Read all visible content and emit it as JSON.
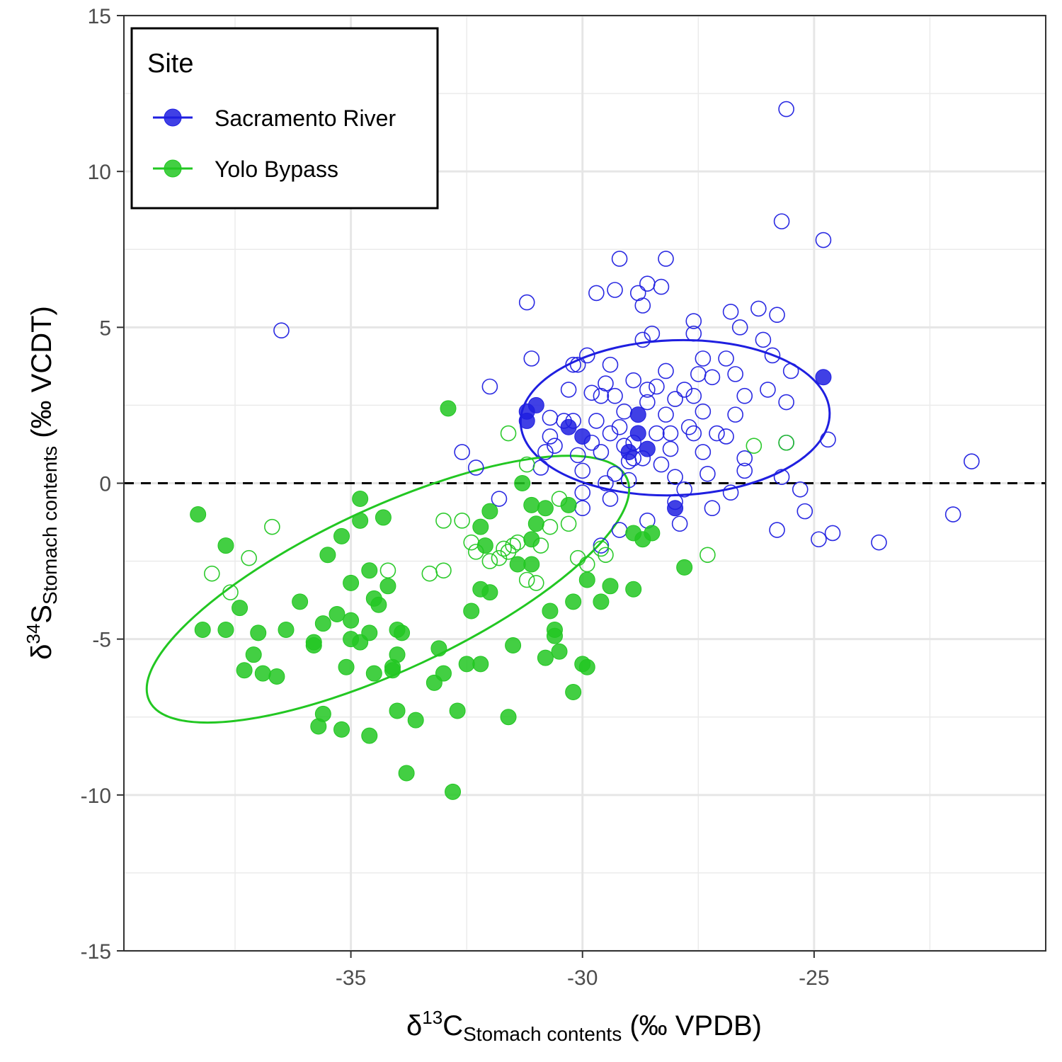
{
  "chart_data": {
    "type": "scatter",
    "xlabel": {
      "prefix": "δ",
      "sup": "13",
      "main": "C",
      "sub": "Stomach contents",
      "suffix": " (‰ VPDB)"
    },
    "ylabel": {
      "prefix": "δ",
      "sup": "34",
      "main": "S",
      "sub": "Stomach contents",
      "suffix": " (‰ VCDT)"
    },
    "xlim": [
      -39.9,
      -20.0
    ],
    "ylim": [
      -15,
      15
    ],
    "xticks": [
      -35,
      -30,
      -25
    ],
    "xtick_labels": [
      "-35",
      "-30",
      "-25"
    ],
    "yticks": [
      -15,
      -10,
      -5,
      0,
      5,
      10,
      15
    ],
    "ytick_labels": [
      "-15",
      "-10",
      "-5",
      "0",
      "5",
      "10",
      "15"
    ],
    "grid": true,
    "reference_line": {
      "y": 0,
      "style": "dashed"
    },
    "legend": {
      "title": "Site",
      "position": "top-left",
      "entries": [
        "Sacramento River",
        "Yolo Bypass"
      ]
    },
    "colors": {
      "Sacramento River": "#1f1fe0",
      "Yolo Bypass": "#22c722"
    },
    "series": [
      {
        "name": "Sacramento River",
        "filled": [
          [
            -31.2,
            2.3
          ],
          [
            -31.2,
            2.0
          ],
          [
            -31.0,
            2.5
          ],
          [
            -30.3,
            1.8
          ],
          [
            -30.0,
            1.5
          ],
          [
            -29.0,
            1.0
          ],
          [
            -28.8,
            2.2
          ],
          [
            -28.8,
            1.6
          ],
          [
            -28.6,
            1.1
          ],
          [
            -28.0,
            -0.8
          ],
          [
            -24.8,
            3.4
          ]
        ],
        "open": [
          [
            -36.5,
            4.9
          ],
          [
            -32.0,
            3.1
          ],
          [
            -31.2,
            5.8
          ],
          [
            -31.1,
            4.0
          ],
          [
            -32.6,
            1.0
          ],
          [
            -32.3,
            0.5
          ],
          [
            -31.8,
            -0.5
          ],
          [
            -30.9,
            0.5
          ],
          [
            -30.8,
            1.0
          ],
          [
            -30.7,
            1.5
          ],
          [
            -30.4,
            2.0
          ],
          [
            -30.3,
            3.0
          ],
          [
            -30.2,
            3.8
          ],
          [
            -30.1,
            3.8
          ],
          [
            -29.9,
            4.1
          ],
          [
            -30.2,
            2.0
          ],
          [
            -30.1,
            0.9
          ],
          [
            -30.0,
            0.4
          ],
          [
            -30.0,
            -0.3
          ],
          [
            -30.0,
            -0.8
          ],
          [
            -29.8,
            1.3
          ],
          [
            -29.7,
            2.0
          ],
          [
            -29.6,
            2.8
          ],
          [
            -29.5,
            3.2
          ],
          [
            -29.4,
            3.8
          ],
          [
            -29.3,
            2.8
          ],
          [
            -29.2,
            1.8
          ],
          [
            -29.1,
            1.2
          ],
          [
            -29.0,
            0.7
          ],
          [
            -29.0,
            0.1
          ],
          [
            -29.5,
            0.0
          ],
          [
            -29.4,
            -0.5
          ],
          [
            -29.6,
            -2.0
          ],
          [
            -29.2,
            -1.5
          ],
          [
            -29.7,
            6.1
          ],
          [
            -29.3,
            6.2
          ],
          [
            -29.2,
            7.2
          ],
          [
            -28.6,
            6.4
          ],
          [
            -28.3,
            6.3
          ],
          [
            -28.2,
            7.2
          ],
          [
            -28.8,
            6.1
          ],
          [
            -28.7,
            5.7
          ],
          [
            -28.5,
            4.8
          ],
          [
            -28.7,
            4.6
          ],
          [
            -28.2,
            3.6
          ],
          [
            -28.4,
            3.1
          ],
          [
            -28.6,
            2.6
          ],
          [
            -28.2,
            2.2
          ],
          [
            -28.4,
            1.6
          ],
          [
            -28.1,
            1.1
          ],
          [
            -28.3,
            0.6
          ],
          [
            -28.0,
            0.2
          ],
          [
            -28.0,
            -0.6
          ],
          [
            -27.9,
            -1.3
          ],
          [
            -28.6,
            -1.2
          ],
          [
            -27.6,
            5.2
          ],
          [
            -27.6,
            4.8
          ],
          [
            -27.4,
            4.0
          ],
          [
            -27.5,
            3.5
          ],
          [
            -27.6,
            2.8
          ],
          [
            -27.4,
            2.3
          ],
          [
            -27.6,
            1.6
          ],
          [
            -27.4,
            1.0
          ],
          [
            -27.3,
            0.3
          ],
          [
            -27.2,
            -0.8
          ],
          [
            -27.8,
            -0.2
          ],
          [
            -26.8,
            5.5
          ],
          [
            -26.6,
            5.0
          ],
          [
            -26.9,
            4.0
          ],
          [
            -26.7,
            3.5
          ],
          [
            -26.5,
            2.8
          ],
          [
            -26.9,
            1.5
          ],
          [
            -26.5,
            0.8
          ],
          [
            -26.5,
            0.4
          ],
          [
            -26.8,
            -0.3
          ],
          [
            -26.2,
            5.6
          ],
          [
            -26.1,
            4.6
          ],
          [
            -25.9,
            4.1
          ],
          [
            -26.0,
            3.0
          ],
          [
            -25.8,
            5.4
          ],
          [
            -25.5,
            3.6
          ],
          [
            -25.6,
            2.6
          ],
          [
            -25.6,
            1.3
          ],
          [
            -25.7,
            0.2
          ],
          [
            -25.8,
            -1.5
          ],
          [
            -25.3,
            -0.2
          ],
          [
            -25.2,
            -0.9
          ],
          [
            -24.9,
            -1.8
          ],
          [
            -24.6,
            -1.6
          ],
          [
            -24.7,
            1.4
          ],
          [
            -25.6,
            12.0
          ],
          [
            -25.7,
            8.4
          ],
          [
            -24.8,
            7.8
          ],
          [
            -23.6,
            -1.9
          ],
          [
            -22.0,
            -1.0
          ],
          [
            -21.6,
            0.7
          ],
          [
            -28.9,
            3.3
          ],
          [
            -28.6,
            3.0
          ],
          [
            -29.1,
            2.3
          ],
          [
            -28.9,
            1.3
          ],
          [
            -28.7,
            0.8
          ],
          [
            -29.8,
            2.9
          ],
          [
            -29.4,
            1.6
          ],
          [
            -30.6,
            1.2
          ],
          [
            -30.7,
            2.1
          ],
          [
            -28.0,
            2.7
          ],
          [
            -27.8,
            3.0
          ],
          [
            -27.2,
            3.4
          ],
          [
            -27.1,
            1.6
          ],
          [
            -26.7,
            2.2
          ],
          [
            -29.6,
            1.0
          ],
          [
            -29.3,
            0.3
          ],
          [
            -28.9,
            0.8
          ],
          [
            -28.1,
            1.6
          ],
          [
            -27.7,
            1.8
          ]
        ]
      },
      {
        "name": "Yolo Bypass",
        "filled": [
          [
            -38.3,
            -1.0
          ],
          [
            -37.7,
            -2.0
          ],
          [
            -38.2,
            -4.7
          ],
          [
            -37.7,
            -4.7
          ],
          [
            -37.4,
            -4.0
          ],
          [
            -37.0,
            -4.8
          ],
          [
            -37.1,
            -5.5
          ],
          [
            -37.3,
            -6.0
          ],
          [
            -36.9,
            -6.1
          ],
          [
            -36.6,
            -6.2
          ],
          [
            -36.4,
            -4.7
          ],
          [
            -36.1,
            -3.8
          ],
          [
            -35.8,
            -5.1
          ],
          [
            -35.8,
            -5.2
          ],
          [
            -35.6,
            -4.5
          ],
          [
            -35.7,
            -7.8
          ],
          [
            -35.6,
            -7.4
          ],
          [
            -35.3,
            -4.2
          ],
          [
            -35.0,
            -4.4
          ],
          [
            -35.0,
            -5.0
          ],
          [
            -35.1,
            -5.9
          ],
          [
            -35.2,
            -7.9
          ],
          [
            -34.8,
            -5.1
          ],
          [
            -34.6,
            -4.8
          ],
          [
            -34.5,
            -6.1
          ],
          [
            -34.6,
            -8.1
          ],
          [
            -34.4,
            -3.9
          ],
          [
            -34.2,
            -3.3
          ],
          [
            -34.0,
            -4.7
          ],
          [
            -33.9,
            -4.8
          ],
          [
            -34.0,
            -5.5
          ],
          [
            -34.1,
            -6.0
          ],
          [
            -34.0,
            -7.3
          ],
          [
            -33.8,
            -9.3
          ],
          [
            -33.6,
            -7.6
          ],
          [
            -33.2,
            -6.4
          ],
          [
            -33.1,
            -5.3
          ],
          [
            -33.0,
            -6.1
          ],
          [
            -32.8,
            -9.9
          ],
          [
            -32.7,
            -7.3
          ],
          [
            -32.5,
            -5.8
          ],
          [
            -32.2,
            -5.8
          ],
          [
            -32.4,
            -4.1
          ],
          [
            -32.2,
            -3.4
          ],
          [
            -32.0,
            -3.5
          ],
          [
            -32.1,
            -2.0
          ],
          [
            -32.2,
            -1.4
          ],
          [
            -32.0,
            -0.9
          ],
          [
            -31.6,
            -7.5
          ],
          [
            -31.5,
            -5.2
          ],
          [
            -31.4,
            -2.6
          ],
          [
            -31.1,
            -2.6
          ],
          [
            -31.1,
            -1.8
          ],
          [
            -31.0,
            -1.3
          ],
          [
            -30.8,
            -0.8
          ],
          [
            -30.8,
            -5.6
          ],
          [
            -30.7,
            -4.1
          ],
          [
            -30.6,
            -4.9
          ],
          [
            -30.6,
            -4.7
          ],
          [
            -30.5,
            -5.4
          ],
          [
            -30.2,
            -6.7
          ],
          [
            -30.3,
            -0.7
          ],
          [
            -30.0,
            -5.8
          ],
          [
            -29.9,
            -5.9
          ],
          [
            -29.9,
            -3.1
          ],
          [
            -29.6,
            -3.8
          ],
          [
            -29.4,
            -3.3
          ],
          [
            -28.9,
            -3.4
          ],
          [
            -28.7,
            -1.8
          ],
          [
            -28.5,
            -1.6
          ],
          [
            -27.8,
            -2.7
          ],
          [
            -35.2,
            -1.7
          ],
          [
            -35.5,
            -2.3
          ],
          [
            -35.0,
            -3.2
          ],
          [
            -34.8,
            -0.5
          ],
          [
            -34.8,
            -1.2
          ],
          [
            -34.3,
            -1.1
          ],
          [
            -34.6,
            -2.8
          ],
          [
            -34.5,
            -3.7
          ],
          [
            -34.1,
            -5.9
          ],
          [
            -32.9,
            2.4
          ],
          [
            -31.3,
            0.0
          ],
          [
            -31.1,
            -0.7
          ],
          [
            -30.2,
            -3.8
          ],
          [
            -28.9,
            -1.6
          ]
        ],
        "open": [
          [
            -38.0,
            -2.9
          ],
          [
            -37.6,
            -3.5
          ],
          [
            -37.2,
            -2.4
          ],
          [
            -36.7,
            -1.4
          ],
          [
            -34.2,
            -2.8
          ],
          [
            -33.3,
            -2.9
          ],
          [
            -33.0,
            -2.8
          ],
          [
            -33.0,
            -1.2
          ],
          [
            -32.6,
            -1.2
          ],
          [
            -32.4,
            -1.9
          ],
          [
            -32.3,
            -2.2
          ],
          [
            -32.0,
            -2.5
          ],
          [
            -31.8,
            -2.4
          ],
          [
            -31.7,
            -2.1
          ],
          [
            -31.6,
            -2.2
          ],
          [
            -31.5,
            -2.0
          ],
          [
            -31.4,
            -1.9
          ],
          [
            -31.2,
            -3.1
          ],
          [
            -31.0,
            -3.2
          ],
          [
            -30.9,
            -2.0
          ],
          [
            -30.7,
            -1.4
          ],
          [
            -30.5,
            -0.5
          ],
          [
            -30.3,
            -1.3
          ],
          [
            -30.1,
            -2.4
          ],
          [
            -29.9,
            -2.6
          ],
          [
            -29.6,
            -2.1
          ],
          [
            -29.5,
            -2.3
          ],
          [
            -31.6,
            1.6
          ],
          [
            -31.2,
            0.6
          ],
          [
            -26.3,
            1.2
          ],
          [
            -25.6,
            1.3
          ],
          [
            -27.3,
            -2.3
          ]
        ]
      }
    ],
    "ellipses": [
      {
        "series": "Sacramento River",
        "center": [
          -28.0,
          2.1
        ],
        "semi_axes": [
          7.1,
          4.4
        ],
        "rotation_deg": 2
      },
      {
        "series": "Yolo Bypass",
        "center": [
          -34.2,
          -3.4
        ],
        "semi_axes": [
          12.1,
          4.6
        ],
        "rotation_deg": 25
      }
    ]
  }
}
